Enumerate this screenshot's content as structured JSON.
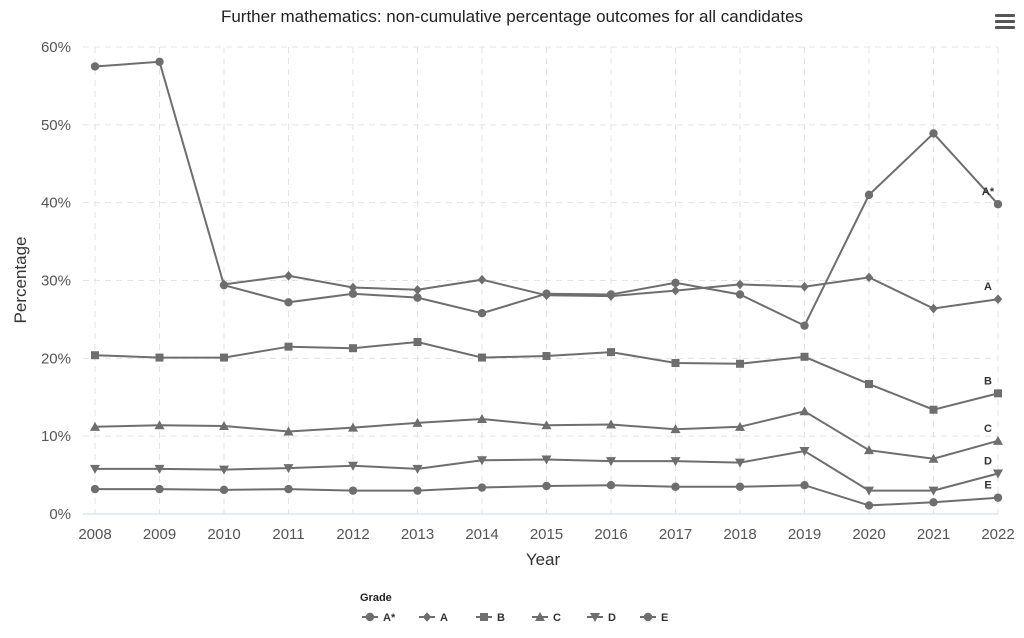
{
  "chart_data": {
    "type": "line",
    "title": "Further mathematics: non-cumulative percentage outcomes for all candidates",
    "xlabel": "Year",
    "ylabel": "Percentage",
    "ylim": [
      0,
      60
    ],
    "y_ticks": [
      "0%",
      "10%",
      "20%",
      "30%",
      "40%",
      "50%",
      "60%"
    ],
    "x": [
      "2008",
      "2009",
      "2010",
      "2011",
      "2012",
      "2013",
      "2014",
      "2015",
      "2016",
      "2017",
      "2018",
      "2019",
      "2020",
      "2021",
      "2022"
    ],
    "grid": true,
    "legend_title": "Grade",
    "legend_position": "bottom",
    "line_color": "#6e6e6e",
    "series": [
      {
        "name": "A*",
        "marker": "circle",
        "values": [
          57.5,
          58.1,
          29.4,
          null,
          null,
          null,
          null,
          null,
          null,
          null,
          null,
          null,
          41.0,
          48.9,
          39.8
        ]
      },
      {
        "name": "A",
        "marker": "diamond",
        "values": [
          null,
          null,
          29.5,
          30.6,
          29.1,
          28.8,
          30.1,
          28.1,
          28.0,
          28.7,
          29.5,
          29.2,
          30.4,
          26.4,
          27.6
        ]
      },
      {
        "name": "B",
        "marker": "square",
        "values": [
          20.4,
          20.1,
          20.1,
          21.5,
          21.3,
          22.1,
          20.1,
          20.3,
          20.8,
          19.4,
          19.3,
          20.2,
          16.7,
          13.4,
          15.5
        ]
      },
      {
        "name": "C",
        "marker": "triangle-up",
        "values": [
          11.2,
          11.4,
          11.3,
          10.6,
          11.1,
          11.7,
          12.2,
          11.4,
          11.5,
          10.9,
          11.2,
          13.2,
          8.2,
          7.1,
          9.4
        ]
      },
      {
        "name": "D",
        "marker": "triangle-down",
        "values": [
          5.8,
          5.8,
          5.7,
          5.9,
          6.2,
          5.8,
          6.9,
          7.0,
          6.8,
          6.8,
          6.6,
          8.1,
          3.0,
          3.0,
          5.2
        ]
      },
      {
        "name": "E",
        "marker": "circle",
        "values": [
          3.2,
          3.2,
          3.1,
          3.2,
          3.0,
          3.0,
          3.4,
          3.6,
          3.7,
          3.5,
          3.5,
          3.7,
          1.1,
          1.5,
          2.1
        ]
      }
    ],
    "extra_points": {
      "A*": {
        "x": [
          2011,
          2012,
          2013,
          2014,
          2015,
          2016,
          2017,
          2018,
          2019
        ],
        "values": [
          27.2,
          28.3,
          27.8,
          25.8,
          28.3,
          28.2,
          29.7,
          28.2,
          24.2
        ]
      }
    }
  }
}
